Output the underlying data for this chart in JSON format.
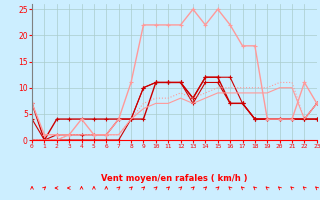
{
  "x": [
    0,
    1,
    2,
    3,
    4,
    5,
    6,
    7,
    8,
    9,
    10,
    11,
    12,
    13,
    14,
    15,
    16,
    17,
    18,
    19,
    20,
    21,
    22,
    23
  ],
  "series": [
    {
      "y": [
        7,
        0,
        4,
        4,
        4,
        4,
        4,
        4,
        4,
        4,
        11,
        11,
        11,
        8,
        12,
        12,
        7,
        7,
        4,
        4,
        4,
        4,
        4,
        4
      ],
      "color": "#cc0000",
      "lw": 1.0,
      "marker": "+"
    },
    {
      "y": [
        4,
        0,
        1,
        1,
        1,
        1,
        1,
        4,
        4,
        10,
        11,
        11,
        11,
        7,
        11,
        11,
        7,
        7,
        4,
        4,
        4,
        4,
        4,
        4
      ],
      "color": "#cc0000",
      "lw": 0.8,
      "marker": "+"
    },
    {
      "y": [
        0,
        0,
        0,
        0,
        0,
        0,
        0,
        0,
        4,
        10,
        11,
        11,
        11,
        8,
        12,
        12,
        12,
        7,
        4,
        4,
        4,
        4,
        4,
        7
      ],
      "color": "#cc0000",
      "lw": 0.8,
      "marker": "+"
    },
    {
      "y": [
        7,
        1,
        1,
        1,
        4,
        1,
        1,
        4,
        11,
        22,
        22,
        22,
        22,
        25,
        22,
        25,
        22,
        18,
        18,
        4,
        4,
        4,
        11,
        7
      ],
      "color": "#ff9999",
      "lw": 1.0,
      "marker": "+"
    },
    {
      "y": [
        0,
        0,
        0,
        1,
        1,
        1,
        1,
        1,
        4,
        7,
        8,
        8,
        9,
        8,
        9,
        10,
        10,
        10,
        10,
        10,
        11,
        11,
        4,
        7
      ],
      "color": "#ff9999",
      "lw": 0.8,
      "marker": null,
      "linestyle": "dotted"
    },
    {
      "y": [
        0,
        0,
        0,
        1,
        1,
        1,
        1,
        1,
        4,
        6,
        7,
        7,
        8,
        7,
        8,
        9,
        9,
        9,
        9,
        9,
        10,
        10,
        4,
        7
      ],
      "color": "#ff9999",
      "lw": 0.8,
      "marker": null,
      "linestyle": "solid"
    }
  ],
  "xlabel": "Vent moyen/en rafales ( km/h )",
  "xlim": [
    0,
    23
  ],
  "ylim": [
    0,
    26
  ],
  "yticks": [
    0,
    5,
    10,
    15,
    20,
    25
  ],
  "xticks": [
    0,
    1,
    2,
    3,
    4,
    5,
    6,
    7,
    8,
    9,
    10,
    11,
    12,
    13,
    14,
    15,
    16,
    17,
    18,
    19,
    20,
    21,
    22,
    23
  ],
  "bg_color": "#cceeff",
  "grid_color": "#aacccc",
  "arrow_angles": [
    90,
    45,
    180,
    180,
    90,
    90,
    90,
    45,
    45,
    45,
    45,
    45,
    45,
    45,
    45,
    45,
    135,
    135,
    135,
    135,
    135,
    135,
    135,
    135
  ]
}
